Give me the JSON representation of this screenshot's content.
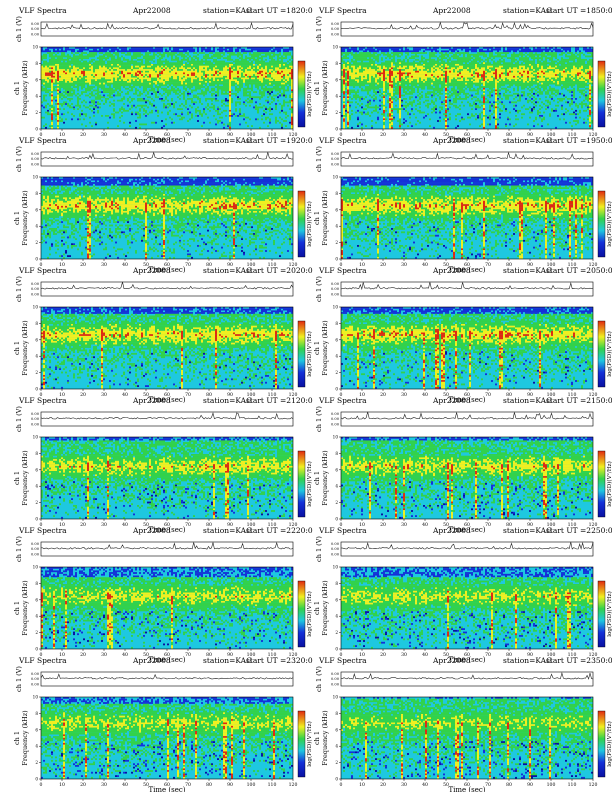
{
  "page": {
    "common": {
      "title": "VLF Spectra",
      "date": "Apr22008",
      "station": "station=KAG",
      "ut_prefix": "start  UT  =",
      "ch_label": "ch 1 (V)",
      "ylabel": "Frequency  (kHz)",
      "ylabel_ch": "ch 1",
      "xlabel": "Time  (sec)",
      "colorbar_label": "log(PSD)(V²/Hz)",
      "colorbar_label_right": "log(PSD)(V²/Hz)",
      "ch_ticks": [
        "0.00",
        "0.00",
        "0.00"
      ],
      "colors": {
        "background": "#1ec8e0",
        "green": "#32d24a",
        "yellow": "#f0f020",
        "red": "#e02a10",
        "blue": "#1430d8",
        "dark_blue": "#0a10a0",
        "axis": "#000000"
      }
    }
  },
  "chart_data": [
    {
      "type": "heatmap",
      "start_ut": "1820:0",
      "x_range": [
        0,
        120
      ],
      "y_range": [
        0,
        10
      ],
      "xticks": [
        0,
        10,
        20,
        30,
        40,
        50,
        60,
        70,
        80,
        90,
        100,
        110,
        120
      ],
      "yticks": [
        0,
        2,
        4,
        6,
        8,
        10
      ],
      "band": {
        "red_center_khz": 6.7,
        "active_top_khz": 9.3
      },
      "activity": 0.85
    },
    {
      "type": "heatmap",
      "start_ut": "1850:0",
      "x_range": [
        0,
        120
      ],
      "y_range": [
        0,
        10
      ],
      "xticks": [
        0,
        10,
        20,
        30,
        40,
        50,
        60,
        70,
        80,
        90,
        100,
        110,
        120
      ],
      "yticks": [
        0,
        2,
        4,
        6,
        8,
        10
      ],
      "band": {
        "red_center_khz": 6.7,
        "active_top_khz": 9.3
      },
      "activity": 0.8
    },
    {
      "type": "heatmap",
      "start_ut": "1920:0",
      "x_range": [
        0,
        120
      ],
      "y_range": [
        0,
        10
      ],
      "xticks": [
        0,
        10,
        20,
        30,
        40,
        50,
        60,
        70,
        80,
        90,
        100,
        110,
        120
      ],
      "yticks": [
        0,
        2,
        4,
        6,
        8,
        10
      ],
      "band": {
        "red_center_khz": 6.5,
        "active_top_khz": 9.0
      },
      "activity": 0.85
    },
    {
      "type": "heatmap",
      "start_ut": "1950:0",
      "x_range": [
        0,
        120
      ],
      "y_range": [
        0,
        10
      ],
      "xticks": [
        0,
        10,
        20,
        30,
        40,
        50,
        60,
        70,
        80,
        90,
        100,
        110,
        120
      ],
      "yticks": [
        0,
        2,
        4,
        6,
        8,
        10
      ],
      "band": {
        "red_center_khz": 6.5,
        "active_top_khz": 9.0
      },
      "activity": 0.85
    },
    {
      "type": "heatmap",
      "start_ut": "2020:0",
      "x_range": [
        0,
        120
      ],
      "y_range": [
        0,
        10
      ],
      "xticks": [
        0,
        10,
        20,
        30,
        40,
        50,
        60,
        70,
        80,
        90,
        100,
        110,
        120
      ],
      "yticks": [
        0,
        2,
        4,
        6,
        8,
        10
      ],
      "band": {
        "red_center_khz": 6.6,
        "active_top_khz": 9.2
      },
      "activity": 0.8
    },
    {
      "type": "heatmap",
      "start_ut": "2050:0",
      "x_range": [
        0,
        120
      ],
      "y_range": [
        0,
        10
      ],
      "xticks": [
        0,
        10,
        20,
        30,
        40,
        50,
        60,
        70,
        80,
        90,
        100,
        110,
        120
      ],
      "yticks": [
        0,
        2,
        4,
        6,
        8,
        10
      ],
      "band": {
        "red_center_khz": 6.6,
        "active_top_khz": 9.2
      },
      "activity": 0.8
    },
    {
      "type": "heatmap",
      "start_ut": "2120:0",
      "x_range": [
        0,
        120
      ],
      "y_range": [
        0,
        10
      ],
      "xticks": [
        0,
        10,
        20,
        30,
        40,
        50,
        60,
        70,
        80,
        90,
        100,
        110,
        120
      ],
      "yticks": [
        0,
        2,
        4,
        6,
        8,
        10
      ],
      "band": {
        "red_center_khz": 6.4,
        "active_top_khz": 9.6
      },
      "activity": 0.7
    },
    {
      "type": "heatmap",
      "start_ut": "2150:0",
      "x_range": [
        0,
        120
      ],
      "y_range": [
        0,
        10
      ],
      "xticks": [
        0,
        10,
        20,
        30,
        40,
        50,
        60,
        70,
        80,
        90,
        100,
        110,
        120
      ],
      "yticks": [
        0,
        2,
        4,
        6,
        8,
        10
      ],
      "band": {
        "red_center_khz": 6.4,
        "active_top_khz": 9.6
      },
      "activity": 0.7
    },
    {
      "type": "heatmap",
      "start_ut": "2220:0",
      "x_range": [
        0,
        120
      ],
      "y_range": [
        0,
        10
      ],
      "xticks": [
        0,
        10,
        20,
        30,
        40,
        50,
        60,
        70,
        80,
        90,
        100,
        110,
        120
      ],
      "yticks": [
        0,
        2,
        4,
        6,
        8,
        10
      ],
      "band": {
        "red_center_khz": 6.4,
        "active_top_khz": 8.8
      },
      "activity": 0.65
    },
    {
      "type": "heatmap",
      "start_ut": "2250:0",
      "x_range": [
        0,
        120
      ],
      "y_range": [
        0,
        10
      ],
      "xticks": [
        0,
        10,
        20,
        30,
        40,
        50,
        60,
        70,
        80,
        90,
        100,
        110,
        120
      ],
      "yticks": [
        0,
        2,
        4,
        6,
        8,
        10
      ],
      "band": {
        "red_center_khz": 6.4,
        "active_top_khz": 8.8
      },
      "activity": 0.6
    },
    {
      "type": "heatmap",
      "start_ut": "2320:0",
      "x_range": [
        0,
        120
      ],
      "y_range": [
        0,
        10
      ],
      "xticks": [
        0,
        10,
        20,
        30,
        40,
        50,
        60,
        70,
        80,
        90,
        100,
        110,
        120
      ],
      "yticks": [
        0,
        2,
        4,
        6,
        8,
        10
      ],
      "band": {
        "red_center_khz": 6.8,
        "active_top_khz": 9.2
      },
      "activity": 0.55
    },
    {
      "type": "heatmap",
      "start_ut": "2350:0",
      "x_range": [
        0,
        120
      ],
      "y_range": [
        0,
        10
      ],
      "xticks": [
        0,
        10,
        20,
        30,
        40,
        50,
        60,
        70,
        80,
        90,
        100,
        110,
        120
      ],
      "yticks": [
        0,
        2,
        4,
        6,
        8,
        10
      ],
      "band": {
        "red_center_khz": 6.8,
        "active_top_khz": 9.8
      },
      "activity": 0.45
    }
  ]
}
